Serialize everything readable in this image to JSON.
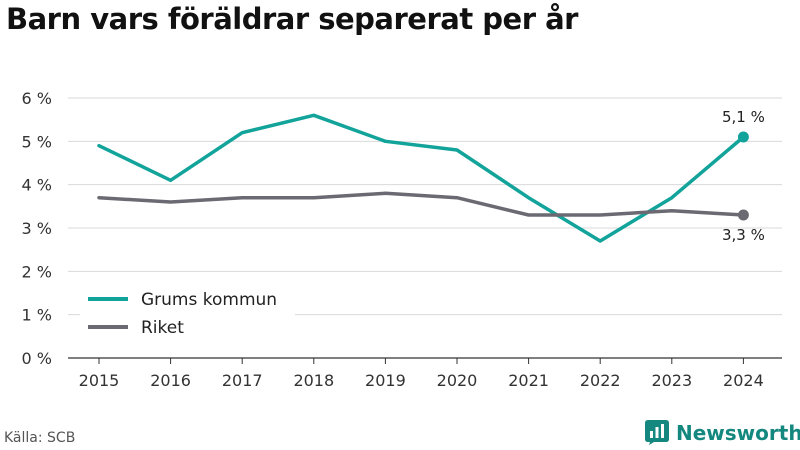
{
  "title": "Barn vars föräldrar separerat per år",
  "source": "Källa: SCB",
  "brand": {
    "name": "Newsworthy",
    "icon": "newsworthy-logo-icon"
  },
  "colors": {
    "grums": "#12a39a",
    "riket": "#6b6a72",
    "grid": "#d9d9d9",
    "axis": "#333333"
  },
  "chart_data": {
    "type": "line",
    "x": [
      "2015",
      "2016",
      "2017",
      "2018",
      "2019",
      "2020",
      "2021",
      "2022",
      "2023",
      "2024"
    ],
    "series": [
      {
        "name": "Grums kommun",
        "values": [
          4.9,
          4.1,
          5.2,
          5.6,
          5.0,
          4.8,
          3.7,
          2.7,
          3.7,
          5.1
        ],
        "end_label": "5,1 %"
      },
      {
        "name": "Riket",
        "values": [
          3.7,
          3.6,
          3.7,
          3.7,
          3.8,
          3.7,
          3.3,
          3.3,
          3.4,
          3.3
        ],
        "end_label": "3,3 %"
      }
    ],
    "ylim": [
      0,
      6
    ],
    "yticks": [
      {
        "value": 0,
        "label": "0 %"
      },
      {
        "value": 1,
        "label": "1 %"
      },
      {
        "value": 2,
        "label": "2 %"
      },
      {
        "value": 3,
        "label": "3 %"
      },
      {
        "value": 4,
        "label": "4 %"
      },
      {
        "value": 5,
        "label": "5 %"
      },
      {
        "value": 6,
        "label": "6 %"
      }
    ],
    "grid": true,
    "legend": "bottom-left"
  }
}
